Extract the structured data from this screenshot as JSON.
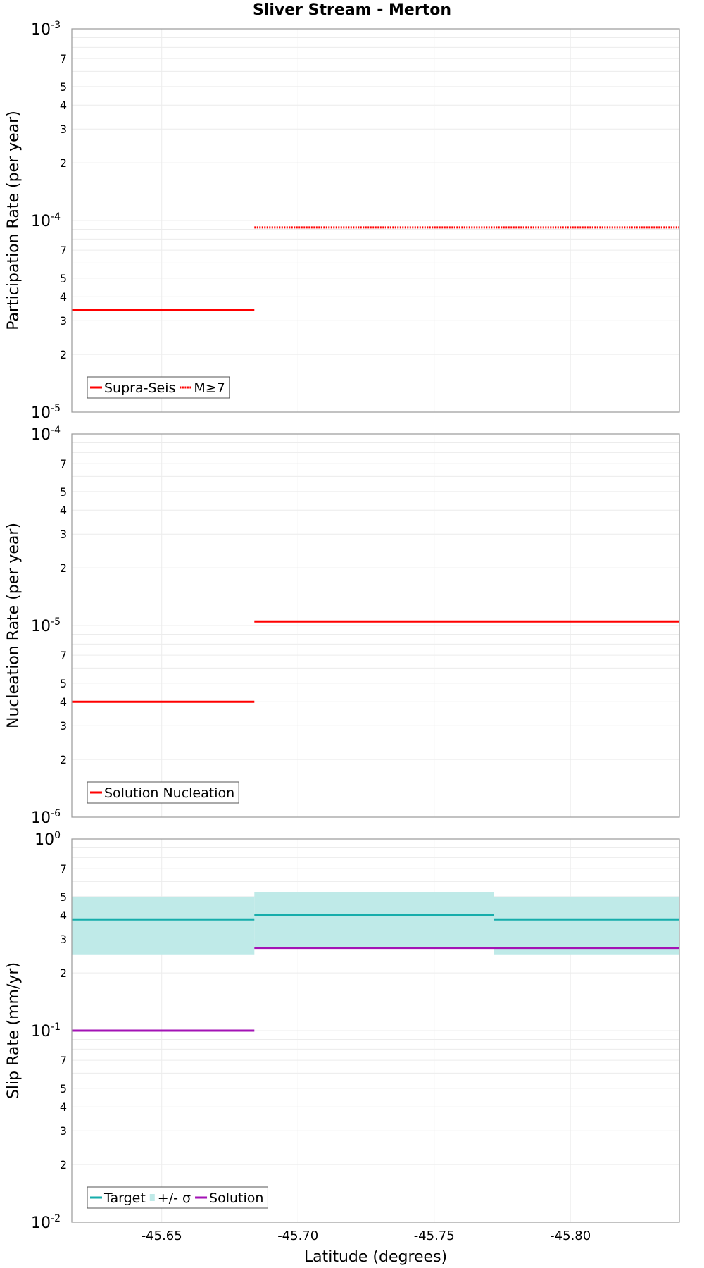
{
  "title": "Sliver Stream - Merton",
  "colors": {
    "red": "#ff0000",
    "teal": "#16adab",
    "band": "#bfeae8",
    "purple": "#a313b5"
  },
  "chart_data": [
    {
      "type": "line",
      "ylabel": "Participation Rate (per year)",
      "yscale": "log",
      "ylim": [
        1e-05,
        0.001
      ],
      "decade_labels": [
        {
          "base": "10",
          "exp": "-5"
        },
        {
          "base": "10",
          "exp": "-4"
        },
        {
          "base": "10",
          "exp": "-3"
        }
      ],
      "minor_labels": [
        "2",
        "3",
        "4",
        "5",
        "7"
      ],
      "legend": [
        "Supra-Seis",
        "M≥7"
      ],
      "series": [
        {
          "name": "Supra-Seis",
          "style": "solid",
          "color": "#ff0000",
          "segments": [
            {
              "x": [
                -45.617,
                -45.684
              ],
              "y": 3.4e-05
            }
          ]
        },
        {
          "name": "M≥7",
          "style": "dotted",
          "color": "#ff0000",
          "segments": [
            {
              "x": [
                -45.684,
                -45.84
              ],
              "y": 9.2e-05
            }
          ]
        }
      ]
    },
    {
      "type": "line",
      "ylabel": "Nucleation Rate (per year)",
      "yscale": "log",
      "ylim": [
        1e-06,
        0.0001
      ],
      "decade_labels": [
        {
          "base": "10",
          "exp": "-6"
        },
        {
          "base": "10",
          "exp": "-5"
        },
        {
          "base": "10",
          "exp": "-4"
        }
      ],
      "minor_labels": [
        "2",
        "3",
        "4",
        "5",
        "7"
      ],
      "legend": [
        "Solution Nucleation"
      ],
      "series": [
        {
          "name": "Solution Nucleation",
          "style": "solid",
          "color": "#ff0000",
          "segments": [
            {
              "x": [
                -45.617,
                -45.684
              ],
              "y": 4e-06
            },
            {
              "x": [
                -45.684,
                -45.84
              ],
              "y": 1.05e-05
            }
          ]
        }
      ]
    },
    {
      "type": "line",
      "ylabel": "Slip Rate (mm/yr)",
      "yscale": "log",
      "ylim": [
        0.01,
        1
      ],
      "decade_labels": [
        {
          "base": "10",
          "exp": "-2"
        },
        {
          "base": "10",
          "exp": "-1"
        },
        {
          "base": "10",
          "exp": "0"
        }
      ],
      "minor_labels": [
        "2",
        "3",
        "4",
        "5",
        "7"
      ],
      "legend": [
        "Target",
        "+/- σ",
        "Solution"
      ],
      "bands": [
        {
          "name": "+/- σ",
          "color": "#bfeae8",
          "segments": [
            {
              "x": [
                -45.617,
                -45.684
              ],
              "y": [
                0.25,
                0.5
              ]
            },
            {
              "x": [
                -45.684,
                -45.772
              ],
              "y": [
                0.27,
                0.53
              ]
            },
            {
              "x": [
                -45.772,
                -45.84
              ],
              "y": [
                0.25,
                0.5
              ]
            }
          ]
        }
      ],
      "series": [
        {
          "name": "Target",
          "style": "solid",
          "color": "#16adab",
          "segments": [
            {
              "x": [
                -45.617,
                -45.684
              ],
              "y": 0.38
            },
            {
              "x": [
                -45.684,
                -45.772
              ],
              "y": 0.4
            },
            {
              "x": [
                -45.772,
                -45.84
              ],
              "y": 0.38
            }
          ]
        },
        {
          "name": "Solution",
          "style": "solid",
          "color": "#a313b5",
          "segments": [
            {
              "x": [
                -45.617,
                -45.684
              ],
              "y": 0.1
            },
            {
              "x": [
                -45.684,
                -45.84
              ],
              "y": 0.27
            }
          ]
        }
      ]
    }
  ],
  "x_axis": {
    "label": "Latitude (degrees)",
    "xlim": [
      -45.617,
      -45.84
    ],
    "ticks": [
      -45.65,
      -45.7,
      -45.75,
      -45.8
    ],
    "tick_labels": [
      "-45.65",
      "-45.70",
      "-45.75",
      "-45.80"
    ]
  }
}
